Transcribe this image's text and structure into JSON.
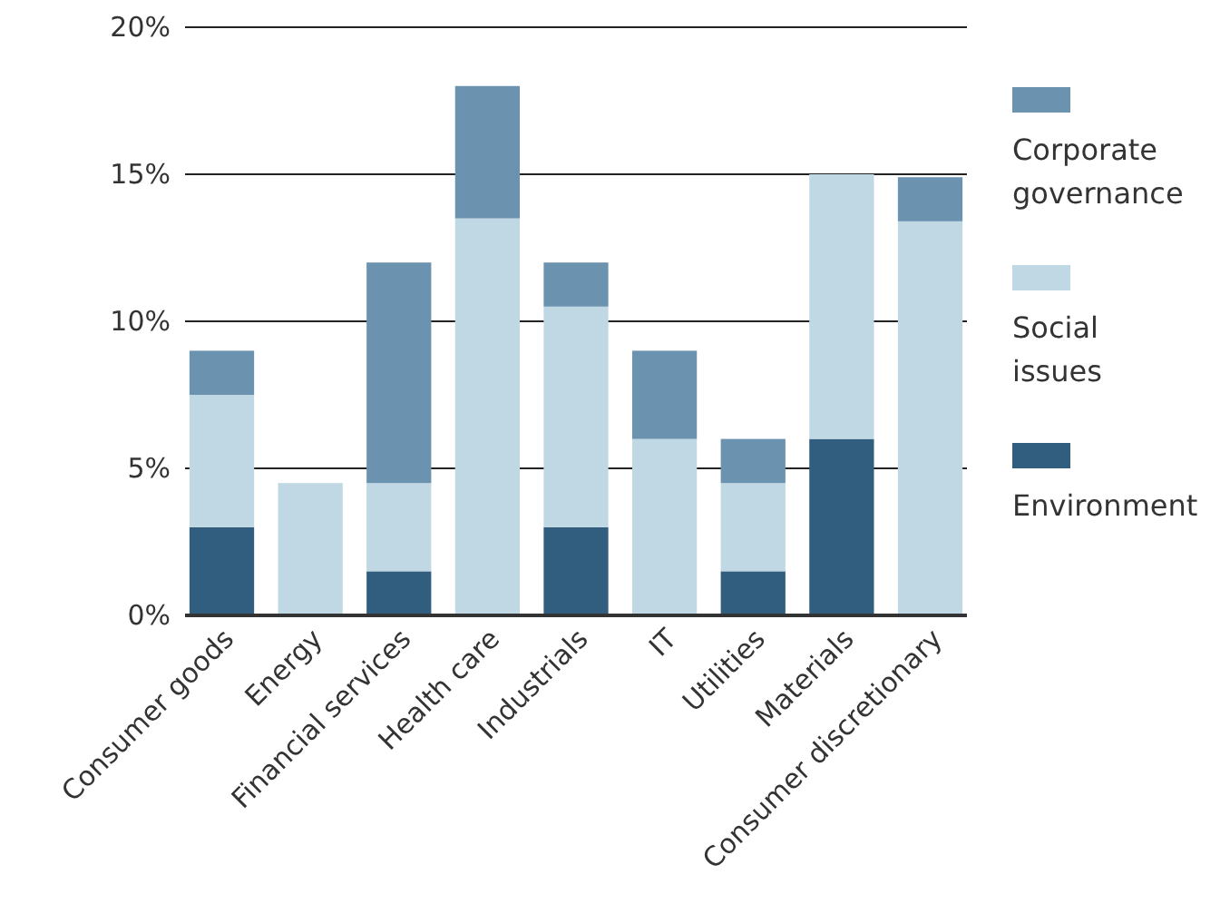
{
  "chart_data": {
    "type": "bar",
    "stacked": true,
    "categories": [
      "Consumer goods",
      "Energy",
      "Financial services",
      "Health care",
      "Industrials",
      "IT",
      "Utilities",
      "Materials",
      "Consumer discretionary"
    ],
    "series": [
      {
        "name": "Environment",
        "color": "#315e7e",
        "values": [
          3,
          0,
          1.5,
          0,
          3,
          0,
          1.5,
          6,
          0
        ]
      },
      {
        "name": "Social issues",
        "color": "#bfd8e4",
        "values": [
          4.5,
          4.5,
          3,
          13.5,
          7.5,
          6,
          3,
          9,
          13.4
        ]
      },
      {
        "name": "Corporate governance",
        "color": "#6b93b0",
        "values": [
          1.5,
          0,
          7.5,
          4.5,
          1.5,
          3,
          1.5,
          0,
          1.5
        ]
      }
    ],
    "ylim": [
      0,
      20
    ],
    "yticks": [
      {
        "value": 0,
        "label": "0%"
      },
      {
        "value": 5,
        "label": "5%"
      },
      {
        "value": 10,
        "label": "10%"
      },
      {
        "value": 15,
        "label": "15%"
      },
      {
        "value": 20,
        "label": "20%"
      }
    ],
    "grid": "y",
    "legend": "right"
  }
}
